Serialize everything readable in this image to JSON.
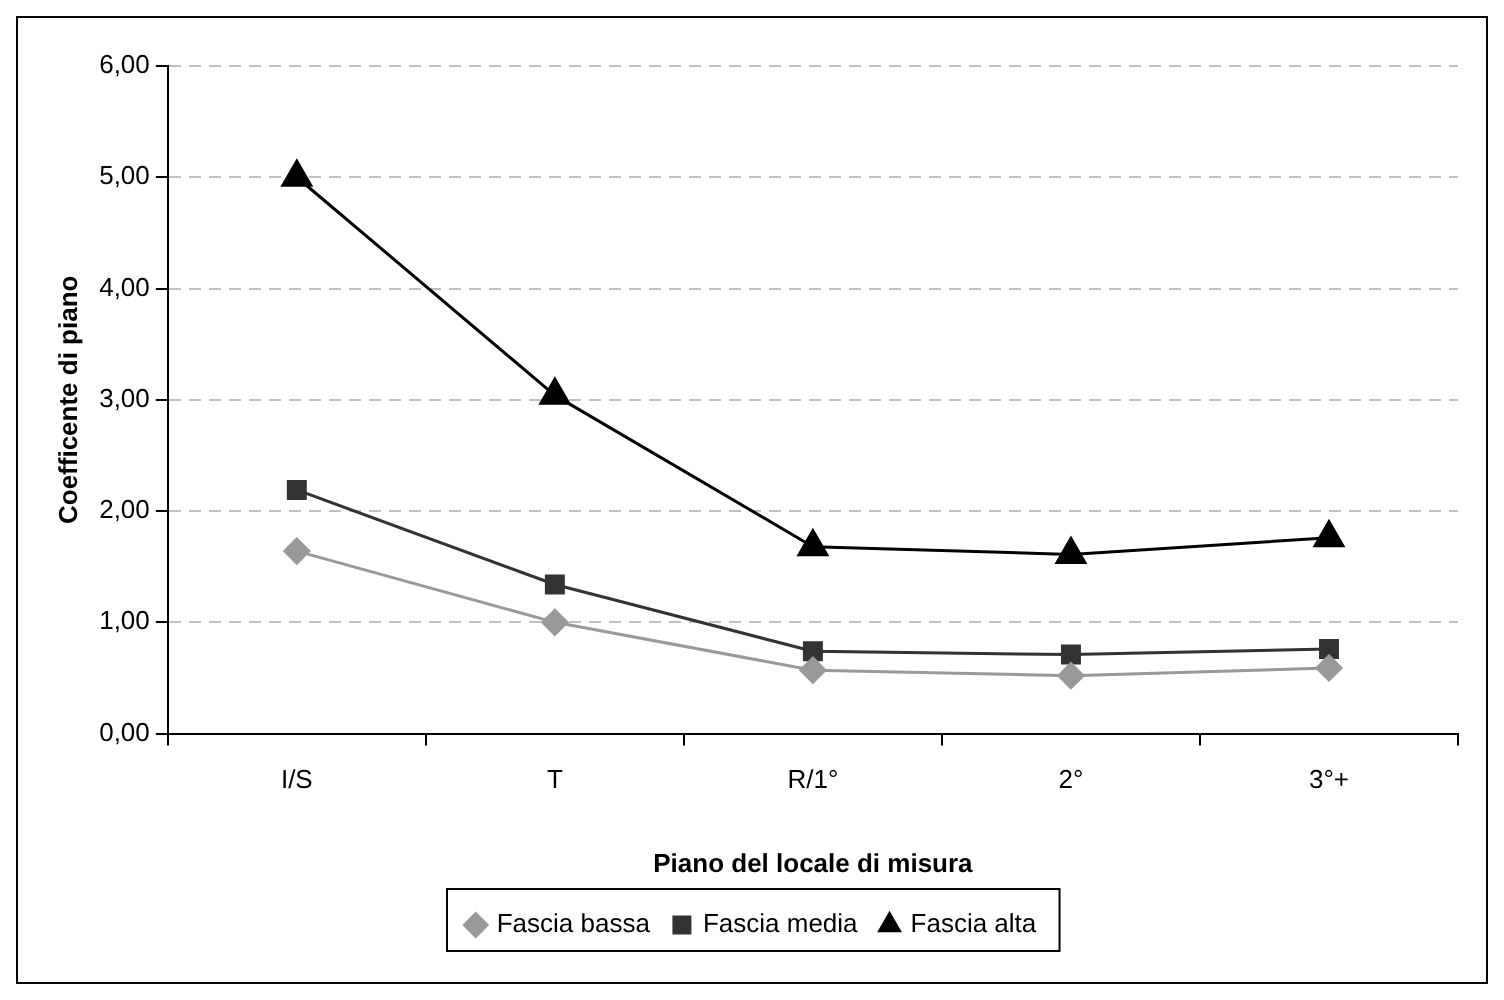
{
  "chart_data": {
    "type": "line",
    "xlabel": "Piano del locale di misura",
    "ylabel": "Coefficente di piano",
    "categories": [
      "I/S",
      "T",
      "R/1°",
      "2°",
      "3°+"
    ],
    "series": [
      {
        "name": "Fascia bassa",
        "color": "#999999",
        "marker": "diamond",
        "values": [
          1.64,
          1.0,
          0.57,
          0.52,
          0.59
        ]
      },
      {
        "name": "Fascia media",
        "color": "#333333",
        "marker": "square",
        "values": [
          2.19,
          1.34,
          0.74,
          0.71,
          0.76
        ]
      },
      {
        "name": "Fascia alta",
        "color": "#000000",
        "marker": "triangle",
        "values": [
          5.0,
          3.04,
          1.68,
          1.61,
          1.76
        ]
      }
    ],
    "ylim": [
      0,
      6
    ],
    "yticks": [
      {
        "value": 0,
        "label": "0,00"
      },
      {
        "value": 1,
        "label": "1,00"
      },
      {
        "value": 2,
        "label": "2,00"
      },
      {
        "value": 3,
        "label": "3,00"
      },
      {
        "value": 4,
        "label": "4,00"
      },
      {
        "value": 5,
        "label": "5,00"
      },
      {
        "value": 6,
        "label": "6,00"
      }
    ],
    "grid": "y",
    "legend": "bottom",
    "line_style": "solid"
  }
}
